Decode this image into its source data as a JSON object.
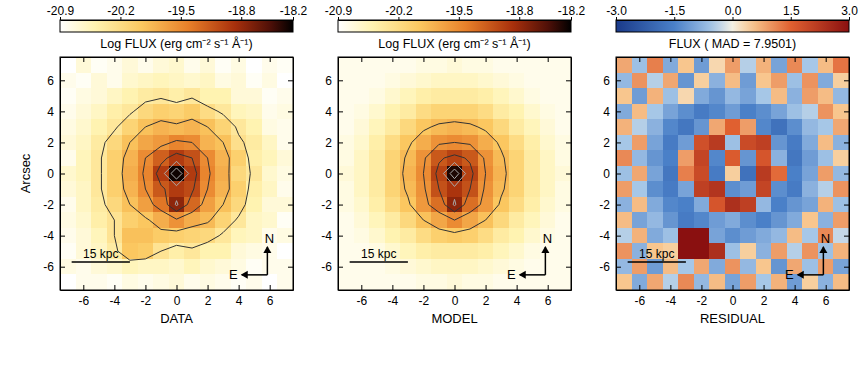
{
  "chart_data": [
    {
      "type": "heatmap",
      "title": "Log FLUX (erg cm⁻² s⁻¹ Å⁻¹)",
      "xlabel": "DATA",
      "ylabel": "Arcsec",
      "x": [
        -7,
        -6,
        -5,
        -4,
        -3,
        -2,
        -1,
        0,
        1,
        2,
        3,
        4,
        5,
        6,
        7
      ],
      "y": [
        7,
        6,
        5,
        4,
        3,
        2,
        1,
        0,
        -1,
        -2,
        -3,
        -4,
        -5,
        -6,
        -7
      ],
      "xlim": [
        -7.5,
        7.5
      ],
      "ylim": [
        -7.5,
        7.5
      ],
      "xticks": [
        -6,
        -4,
        -2,
        0,
        2,
        4,
        6
      ],
      "yticks": [
        -6,
        -4,
        -2,
        0,
        2,
        4,
        6
      ],
      "zlim": [
        -20.9,
        -18.2
      ],
      "zticks": [
        -20.9,
        -20.2,
        -19.5,
        -18.8,
        -18.2
      ],
      "contours": [
        -20.3,
        -19.9,
        -19.5,
        -19.1,
        -18.8,
        -18.5
      ],
      "annotations": {
        "scale_bar": "15 kpc",
        "north": "N",
        "east": "E"
      },
      "cells": [
        [
          -20.9,
          -20.7,
          -20.85,
          -20.8,
          -20.7,
          -20.8,
          -20.7,
          -20.65,
          -20.8,
          -20.7,
          -20.85,
          -20.75,
          -20.9,
          -20.8,
          -20.85
        ],
        [
          -20.8,
          -20.85,
          -20.7,
          -20.8,
          -20.65,
          -20.6,
          -20.55,
          -20.6,
          -20.65,
          -20.6,
          -20.75,
          -20.7,
          -20.85,
          -20.75,
          -20.9
        ],
        [
          -20.85,
          -20.75,
          -20.7,
          -20.6,
          -20.5,
          -20.4,
          -20.35,
          -20.45,
          -20.35,
          -20.5,
          -20.5,
          -20.7,
          -20.7,
          -20.85,
          -20.8
        ],
        [
          -20.8,
          -20.7,
          -20.6,
          -20.45,
          -20.35,
          -20.15,
          -20.05,
          -20.1,
          -20.0,
          -20.2,
          -20.35,
          -20.55,
          -20.6,
          -20.8,
          -20.75
        ],
        [
          -20.75,
          -20.65,
          -20.5,
          -20.35,
          -20.1,
          -19.9,
          -19.8,
          -19.85,
          -19.8,
          -19.9,
          -20.1,
          -20.35,
          -20.5,
          -20.75,
          -20.8
        ],
        [
          -20.7,
          -20.6,
          -20.4,
          -20.15,
          -19.9,
          -19.7,
          -19.6,
          -19.45,
          -19.5,
          -19.8,
          -19.9,
          -20.25,
          -20.4,
          -20.6,
          -20.8
        ],
        [
          -20.8,
          -20.55,
          -20.35,
          -20.05,
          -19.8,
          -19.5,
          -19.2,
          -18.95,
          -19.1,
          -19.5,
          -19.8,
          -20.05,
          -20.45,
          -20.55,
          -20.7
        ],
        [
          -20.65,
          -20.55,
          -20.35,
          -20.05,
          -19.75,
          -19.45,
          -18.95,
          -18.25,
          -18.95,
          -19.45,
          -19.75,
          -20.15,
          -20.35,
          -20.65,
          -20.75
        ],
        [
          -20.7,
          -20.6,
          -20.35,
          -20.05,
          -19.8,
          -19.5,
          -19.15,
          -18.95,
          -19.05,
          -19.5,
          -19.8,
          -20.05,
          -20.45,
          -20.6,
          -20.8
        ],
        [
          -20.8,
          -20.6,
          -20.4,
          -20.15,
          -19.9,
          -19.65,
          -19.35,
          -18.75,
          -19.25,
          -19.65,
          -19.9,
          -20.15,
          -20.5,
          -20.7,
          -20.7
        ],
        [
          -20.75,
          -20.65,
          -20.45,
          -20.3,
          -20.05,
          -19.95,
          -19.75,
          -19.55,
          -19.75,
          -19.85,
          -20.1,
          -20.35,
          -20.6,
          -20.65,
          -20.85
        ],
        [
          -20.8,
          -20.7,
          -20.55,
          -20.3,
          -19.9,
          -19.9,
          -20.0,
          -20.05,
          -20.1,
          -20.15,
          -20.35,
          -20.55,
          -20.6,
          -20.8,
          -20.75
        ],
        [
          -20.85,
          -20.7,
          -20.6,
          -20.4,
          -19.95,
          -20.0,
          -20.3,
          -20.45,
          -20.35,
          -20.5,
          -20.5,
          -20.7,
          -20.75,
          -20.8,
          -20.9
        ],
        [
          -20.75,
          -20.8,
          -20.7,
          -20.65,
          -20.55,
          -20.6,
          -20.6,
          -20.65,
          -20.55,
          -20.65,
          -20.7,
          -20.75,
          -20.85,
          -20.8,
          -20.8
        ],
        [
          -20.9,
          -20.8,
          -20.8,
          -20.85,
          -20.75,
          -20.8,
          -20.75,
          -20.7,
          -20.8,
          -20.75,
          -20.8,
          -20.85,
          -20.8,
          -20.9,
          -20.8
        ]
      ]
    },
    {
      "type": "heatmap",
      "title": "Log FLUX (erg cm⁻² s⁻¹ Å⁻¹)",
      "xlabel": "MODEL",
      "x": [
        -7,
        -6,
        -5,
        -4,
        -3,
        -2,
        -1,
        0,
        1,
        2,
        3,
        4,
        5,
        6,
        7
      ],
      "y": [
        7,
        6,
        5,
        4,
        3,
        2,
        1,
        0,
        -1,
        -2,
        -3,
        -4,
        -5,
        -6,
        -7
      ],
      "xlim": [
        -7.5,
        7.5
      ],
      "ylim": [
        -7.5,
        7.5
      ],
      "xticks": [
        -6,
        -4,
        -2,
        0,
        2,
        4,
        6
      ],
      "yticks": [
        -6,
        -4,
        -2,
        0,
        2,
        4,
        6
      ],
      "zlim": [
        -20.9,
        -18.2
      ],
      "zticks": [
        -20.9,
        -20.2,
        -19.5,
        -18.8,
        -18.2
      ],
      "contours": [
        -19.9,
        -19.5,
        -19.1,
        -18.8,
        -18.5
      ],
      "annotations": {
        "scale_bar": "15 kpc",
        "north": "N",
        "east": "E"
      },
      "cells": [
        [
          -20.8,
          -20.8,
          -20.8,
          -20.8,
          -20.8,
          -20.75,
          -20.75,
          -20.7,
          -20.75,
          -20.75,
          -20.8,
          -20.8,
          -20.8,
          -20.8,
          -20.8
        ],
        [
          -20.8,
          -20.8,
          -20.8,
          -20.75,
          -20.7,
          -20.65,
          -20.6,
          -20.6,
          -20.6,
          -20.65,
          -20.7,
          -20.75,
          -20.8,
          -20.8,
          -20.8
        ],
        [
          -20.8,
          -20.8,
          -20.75,
          -20.65,
          -20.55,
          -20.45,
          -20.4,
          -20.4,
          -20.4,
          -20.45,
          -20.55,
          -20.65,
          -20.75,
          -20.8,
          -20.8
        ],
        [
          -20.8,
          -20.75,
          -20.65,
          -20.5,
          -20.4,
          -20.2,
          -20.1,
          -20.1,
          -20.1,
          -20.2,
          -20.4,
          -20.5,
          -20.65,
          -20.75,
          -20.8
        ],
        [
          -20.8,
          -20.7,
          -20.55,
          -20.4,
          -20.15,
          -19.95,
          -19.85,
          -19.8,
          -19.85,
          -19.95,
          -20.15,
          -20.4,
          -20.55,
          -20.7,
          -20.8
        ],
        [
          -20.75,
          -20.65,
          -20.45,
          -20.2,
          -19.95,
          -19.75,
          -19.55,
          -19.5,
          -19.55,
          -19.75,
          -19.95,
          -20.2,
          -20.45,
          -20.65,
          -20.75
        ],
        [
          -20.75,
          -20.6,
          -20.4,
          -20.1,
          -19.85,
          -19.55,
          -19.15,
          -19.0,
          -19.15,
          -19.55,
          -19.85,
          -20.1,
          -20.4,
          -20.6,
          -20.75
        ],
        [
          -20.7,
          -20.6,
          -20.4,
          -20.1,
          -19.8,
          -19.5,
          -19.0,
          -18.3,
          -19.0,
          -19.5,
          -19.8,
          -20.1,
          -20.4,
          -20.6,
          -20.7
        ],
        [
          -20.75,
          -20.6,
          -20.4,
          -20.1,
          -19.85,
          -19.55,
          -19.1,
          -18.9,
          -19.1,
          -19.55,
          -19.85,
          -20.1,
          -20.4,
          -20.6,
          -20.75
        ],
        [
          -20.75,
          -20.65,
          -20.45,
          -20.2,
          -19.95,
          -19.6,
          -19.3,
          -18.75,
          -19.3,
          -19.6,
          -19.95,
          -20.2,
          -20.45,
          -20.65,
          -20.75
        ],
        [
          -20.8,
          -20.7,
          -20.55,
          -20.4,
          -20.15,
          -19.9,
          -19.7,
          -19.5,
          -19.7,
          -19.9,
          -20.15,
          -20.4,
          -20.55,
          -20.7,
          -20.8
        ],
        [
          -20.8,
          -20.75,
          -20.65,
          -20.5,
          -20.4,
          -20.2,
          -20.05,
          -20.0,
          -20.05,
          -20.2,
          -20.4,
          -20.5,
          -20.65,
          -20.75,
          -20.8
        ],
        [
          -20.8,
          -20.8,
          -20.75,
          -20.65,
          -20.55,
          -20.45,
          -20.4,
          -20.4,
          -20.4,
          -20.45,
          -20.55,
          -20.65,
          -20.75,
          -20.8,
          -20.8
        ],
        [
          -20.8,
          -20.8,
          -20.8,
          -20.75,
          -20.7,
          -20.65,
          -20.6,
          -20.6,
          -20.6,
          -20.65,
          -20.7,
          -20.75,
          -20.8,
          -20.8,
          -20.8
        ],
        [
          -20.8,
          -20.8,
          -20.8,
          -20.8,
          -20.8,
          -20.75,
          -20.75,
          -20.7,
          -20.75,
          -20.75,
          -20.8,
          -20.8,
          -20.8,
          -20.8,
          -20.8
        ]
      ]
    },
    {
      "type": "heatmap",
      "title": "FLUX ( MAD = 7.9501)",
      "xlabel": "RESIDUAL",
      "x": [
        -7,
        -6,
        -5,
        -4,
        -3,
        -2,
        -1,
        0,
        1,
        2,
        3,
        4,
        5,
        6,
        7
      ],
      "y": [
        7,
        6,
        5,
        4,
        3,
        2,
        1,
        0,
        -1,
        -2,
        -3,
        -4,
        -5,
        -6,
        -7
      ],
      "xlim": [
        -7.5,
        7.5
      ],
      "ylim": [
        -7.5,
        7.5
      ],
      "xticks": [
        -6,
        -4,
        -2,
        0,
        2,
        4,
        6
      ],
      "yticks": [
        -6,
        -4,
        -2,
        0,
        2,
        4,
        6
      ],
      "zlim": [
        -3,
        3
      ],
      "zticks": [
        {
          "value": -3,
          "label": "-3.0"
        },
        {
          "value": -1.5,
          "label": "-1.5"
        },
        {
          "value": 0,
          "label": "0.0"
        },
        {
          "value": 1.5,
          "label": "1.5"
        },
        {
          "value": 3,
          "label": "3.0"
        }
      ],
      "annotations": {
        "scale_bar": "15 kpc",
        "north": "N",
        "east": "E"
      },
      "cells": [
        [
          0.8,
          -0.6,
          1.2,
          -0.9,
          0.5,
          -1.1,
          0.3,
          0.9,
          -0.4,
          0.7,
          -1.0,
          1.1,
          -0.5,
          0.6,
          1.3
        ],
        [
          -0.7,
          1.0,
          -0.4,
          0.8,
          -1.2,
          0.4,
          -0.8,
          0.6,
          -1.1,
          0.5,
          0.9,
          -0.6,
          1.0,
          -0.9,
          0.4
        ],
        [
          0.5,
          -1.1,
          0.7,
          -0.6,
          0.3,
          -0.9,
          -1.2,
          -0.7,
          -1.0,
          -0.5,
          0.6,
          -0.8,
          0.9,
          0.6,
          -0.7
        ],
        [
          -0.9,
          0.6,
          -0.5,
          -1.0,
          -1.3,
          -1.6,
          -1.4,
          -1.1,
          -1.5,
          -1.3,
          -1.0,
          -0.6,
          -0.4,
          1.0,
          0.5
        ],
        [
          0.7,
          -0.4,
          -0.8,
          -1.4,
          -1.7,
          -1.2,
          0.8,
          1.5,
          0.9,
          -1.4,
          -1.8,
          -1.3,
          -0.7,
          -0.5,
          0.8
        ],
        [
          -0.5,
          0.9,
          -1.0,
          -1.6,
          -1.1,
          1.8,
          2.2,
          -0.6,
          1.9,
          2.1,
          -1.2,
          -1.6,
          -0.9,
          0.6,
          -0.8
        ],
        [
          1.1,
          -0.7,
          -1.2,
          -1.5,
          0.9,
          2.0,
          -1.4,
          1.6,
          -1.2,
          1.7,
          -0.8,
          -1.7,
          -1.1,
          -0.6,
          0.4
        ],
        [
          -0.6,
          0.8,
          -1.0,
          -1.7,
          1.2,
          1.9,
          -1.6,
          0.4,
          -1.8,
          2.2,
          1.4,
          -1.5,
          -1.0,
          0.9,
          -0.7
        ],
        [
          0.9,
          -0.5,
          -1.3,
          -1.6,
          -1.0,
          2.1,
          2.3,
          -1.3,
          -1.1,
          2.0,
          -1.3,
          -1.6,
          -0.8,
          -0.4,
          1.0
        ],
        [
          -0.8,
          0.6,
          -0.9,
          -1.4,
          -1.5,
          -0.9,
          1.7,
          2.4,
          2.1,
          -0.7,
          -1.5,
          -1.2,
          -1.0,
          0.7,
          -0.6
        ],
        [
          0.6,
          -1.0,
          -0.7,
          -1.2,
          -1.6,
          -1.4,
          -1.1,
          -0.9,
          -1.3,
          -1.5,
          -1.2,
          -0.9,
          0.5,
          -0.8,
          0.9
        ],
        [
          -0.4,
          0.7,
          -0.9,
          -0.6,
          3.0,
          3.0,
          -1.0,
          -1.3,
          -1.1,
          -0.9,
          -0.7,
          0.6,
          -0.5,
          1.1,
          -0.3
        ],
        [
          1.0,
          -0.8,
          0.5,
          0.4,
          3.0,
          3.0,
          2.4,
          -0.6,
          0.4,
          -0.8,
          0.9,
          -0.4,
          1.0,
          -0.6,
          0.7
        ],
        [
          -0.7,
          0.9,
          -1.1,
          0.6,
          -0.5,
          0.8,
          -0.9,
          1.0,
          -0.7,
          0.5,
          -1.2,
          0.8,
          -0.6,
          0.9,
          -1.0
        ],
        [
          0.5,
          -0.9,
          0.8,
          -0.4,
          1.1,
          -0.7,
          0.6,
          -1.0,
          0.9,
          -0.5,
          0.7,
          -1.1,
          0.4,
          -0.8,
          0.6
        ]
      ]
    }
  ]
}
